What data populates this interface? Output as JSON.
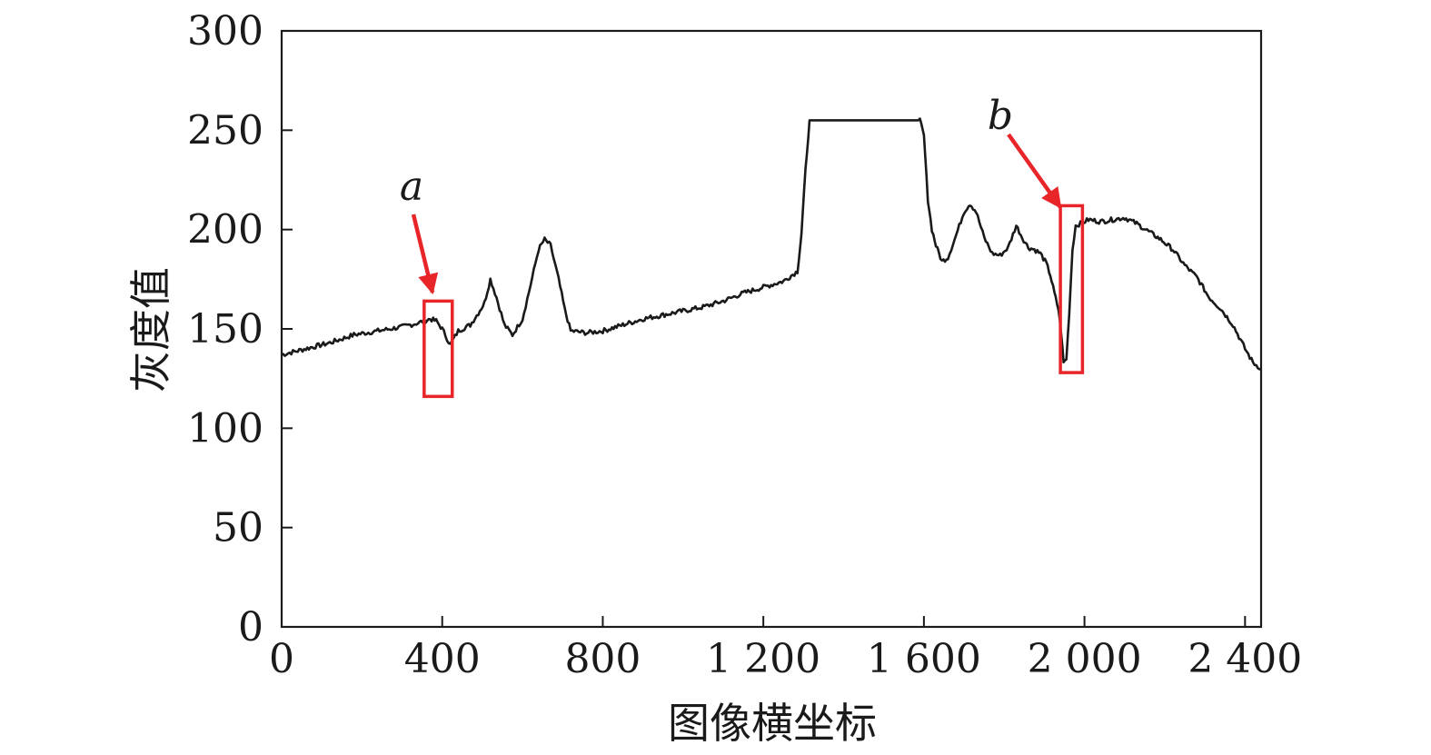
{
  "chart_data": {
    "type": "line",
    "title": "",
    "xlabel": "图像横坐标",
    "ylabel": "灰度值",
    "xlim": [
      0,
      2440
    ],
    "ylim": [
      0,
      300
    ],
    "xticks": [
      0,
      400,
      800,
      1200,
      1600,
      2000,
      2400
    ],
    "xtick_labels": [
      "0",
      "400",
      "800",
      "1 200",
      "1 600",
      "2 000",
      "2 400"
    ],
    "yticks": [
      0,
      50,
      100,
      150,
      200,
      250,
      300
    ],
    "ytick_labels": [
      "0",
      "50",
      "100",
      "150",
      "200",
      "250",
      "300"
    ],
    "grid": false,
    "line_color": "#1a1a1a",
    "annotation_color": "#e8262a",
    "series": [
      {
        "x": [
          0,
          60,
          120,
          180,
          240,
          300,
          340,
          370,
          385,
          400,
          420,
          440,
          470,
          490,
          505,
          520,
          535,
          555,
          575,
          600,
          620,
          640,
          655,
          670,
          690,
          705,
          720,
          760,
          800,
          850,
          900,
          950,
          1000,
          1050,
          1100,
          1150,
          1200,
          1250,
          1285,
          1295,
          1305,
          1315,
          1320,
          1330,
          1400,
          1500,
          1590,
          1600,
          1610,
          1620,
          1630,
          1645,
          1660,
          1680,
          1700,
          1715,
          1730,
          1750,
          1770,
          1790,
          1810,
          1830,
          1845,
          1860,
          1875,
          1890,
          1905,
          1915,
          1925,
          1935,
          1942,
          1948,
          1955,
          1962,
          1970,
          1978,
          1990,
          2010,
          2040,
          2070,
          2100,
          2130,
          2160,
          2190,
          2220,
          2250,
          2280,
          2310,
          2340,
          2370,
          2400,
          2420,
          2440
        ],
        "y": [
          137,
          140,
          143,
          147,
          149,
          151,
          153,
          155,
          154,
          150,
          142,
          149,
          152,
          158,
          163,
          175,
          166,
          152,
          147,
          155,
          172,
          190,
          195,
          192,
          175,
          160,
          149,
          148,
          149,
          152,
          155,
          157,
          159,
          161,
          164,
          168,
          171,
          174,
          179,
          198,
          230,
          255,
          255,
          255,
          255,
          255,
          255,
          247,
          215,
          200,
          192,
          184,
          186,
          197,
          209,
          213,
          209,
          196,
          188,
          187,
          191,
          202,
          196,
          191,
          190,
          188,
          183,
          177,
          168,
          160,
          148,
          133,
          135,
          158,
          190,
          202,
          203,
          205,
          204,
          205,
          206,
          203,
          199,
          195,
          190,
          182,
          176,
          166,
          160,
          152,
          140,
          133,
          130
        ]
      }
    ],
    "annotations": [
      {
        "label": "a",
        "box_x": [
          355,
          425
        ],
        "box_y": [
          116,
          164
        ]
      },
      {
        "label": "b",
        "box_x": [
          1940,
          1995
        ],
        "box_y": [
          128,
          212
        ]
      }
    ]
  }
}
